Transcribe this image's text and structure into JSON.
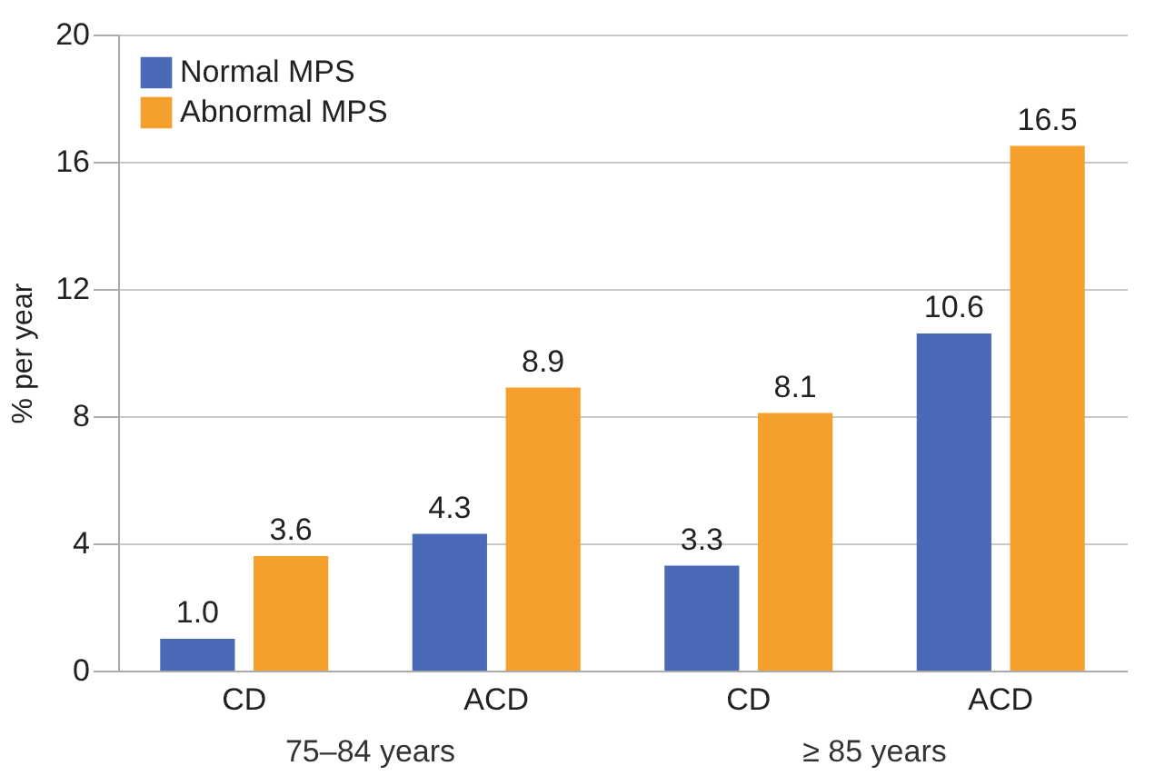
{
  "chart_data": {
    "type": "bar",
    "ylabel": "% per year",
    "categories": [
      "CD",
      "ACD",
      "CD",
      "ACD"
    ],
    "series": [
      {
        "name": "Normal MPS",
        "color": "#4a6ab7",
        "values": [
          1.0,
          4.3,
          3.3,
          10.6
        ],
        "value_labels": [
          "1.0",
          "4.3",
          "3.3",
          "10.6"
        ]
      },
      {
        "name": "Abnormal MPS",
        "color": "#f5a02d",
        "values": [
          3.6,
          8.9,
          8.1,
          16.5
        ],
        "value_labels": [
          "3.6",
          "8.9",
          "8.1",
          "16.5"
        ]
      }
    ],
    "ylim": [
      0,
      20
    ],
    "yticks": [
      0,
      4,
      8,
      12,
      16,
      20
    ],
    "grid": "y",
    "legend": "top left",
    "annotations": [
      "75–84 years",
      "≥ 85 years"
    ]
  }
}
